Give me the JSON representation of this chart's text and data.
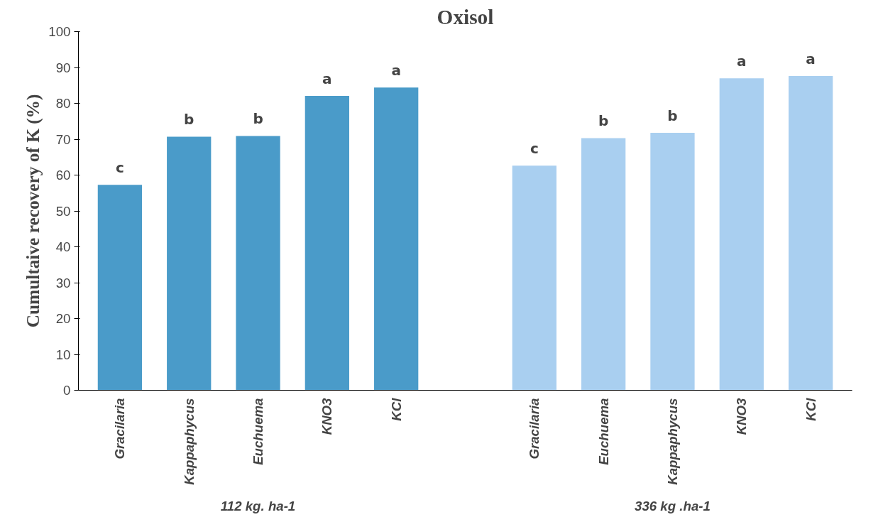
{
  "chart_data": {
    "type": "bar",
    "title": "Oxisol",
    "ylabel": "Cumultaive recovery of K (%)",
    "categories": [
      "Gracilaria",
      "Kappaphycus",
      "Euchuema",
      "KNO3",
      "KCl",
      null,
      "Gracilaria",
      "Euchuema",
      "Kappaphycus",
      "KNO3",
      "KCl"
    ],
    "values": [
      57.3,
      70.7,
      70.9,
      82.1,
      84.4,
      null,
      62.6,
      70.3,
      71.8,
      87.0,
      87.6
    ],
    "colors": [
      "#4a9bc9",
      "#4a9bc9",
      "#4a9bc9",
      "#4a9bc9",
      "#4a9bc9",
      "#4a9bc9",
      "#a9cff0",
      "#a9cff0",
      "#a9cff0",
      "#a9cff0",
      "#a9cff0"
    ],
    "value_labels": [
      "c",
      "b",
      "b",
      "a",
      "a",
      null,
      "c",
      "b",
      "b",
      "a",
      "a"
    ],
    "ylim": [
      0,
      100
    ],
    "yticks": [
      0,
      10,
      20,
      30,
      40,
      50,
      60,
      70,
      80,
      90,
      100
    ],
    "grid": false,
    "annotations": [
      "112 kg. ha-1",
      "336 kg .ha-1"
    ]
  }
}
